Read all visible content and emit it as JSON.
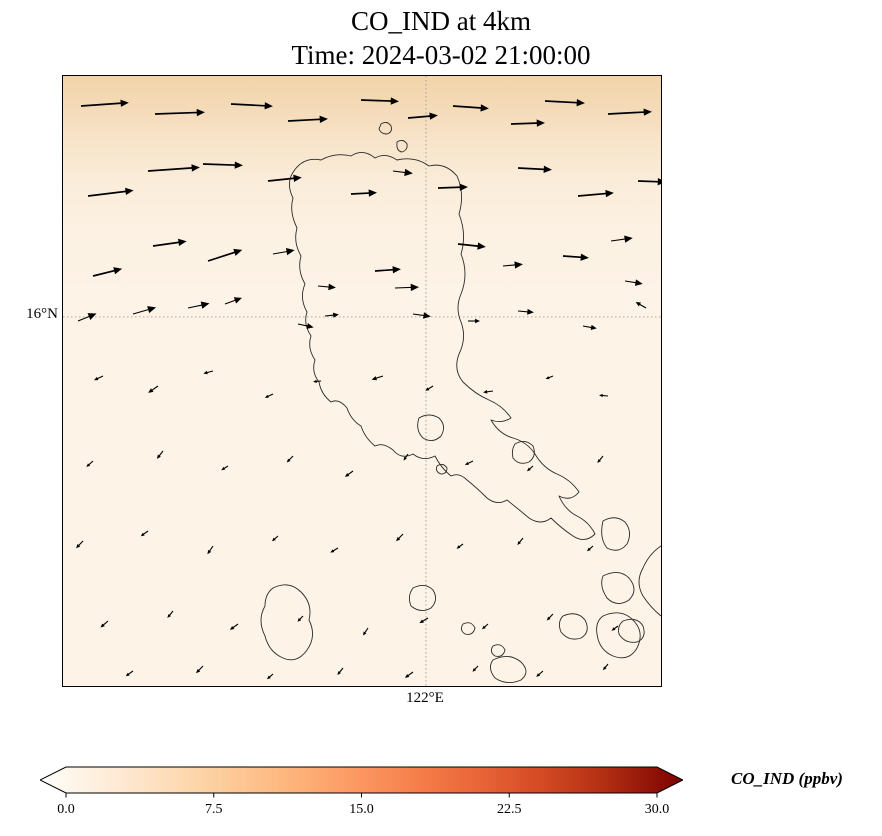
{
  "chart_data": {
    "type": "heatmap",
    "subtype": "geographic filled CO concentration field with wind quiver overlay and coastlines",
    "title": "CO_IND at 4km",
    "subtitle": "Time: 2024-03-02 21:00:00",
    "variable": "CO_IND",
    "level": "4km",
    "units": "ppbv",
    "xticks": [
      "122°E"
    ],
    "yticks": [
      "16°N"
    ],
    "gridlines": {
      "lat": {
        "label": "16°N",
        "y_frac": 0.395
      },
      "lon": {
        "label": "122°E",
        "x_frac": 0.607
      }
    },
    "value_estimate": {
      "background_ppbv": 1.5,
      "north_band_ppbv": 5
    },
    "colorbar": {
      "label": "CO_IND (ppbv)",
      "ticks": [
        "0.0",
        "7.5",
        "15.0",
        "22.5",
        "30.0"
      ],
      "tick_values": [
        0,
        7.5,
        15,
        22.5,
        30
      ],
      "min": 0,
      "max": 30,
      "under_color": "#ffffff",
      "over_color": "#7f0000",
      "stops": [
        {
          "v": 0,
          "color": "#fff7ec"
        },
        {
          "v": 3,
          "color": "#fee8d1"
        },
        {
          "v": 6,
          "color": "#fdd9b0"
        },
        {
          "v": 9,
          "color": "#fdc692"
        },
        {
          "v": 12,
          "color": "#fdb077"
        },
        {
          "v": 15,
          "color": "#fc9660"
        },
        {
          "v": 18,
          "color": "#f57d4a"
        },
        {
          "v": 21,
          "color": "#e86437"
        },
        {
          "v": 24,
          "color": "#d54b24"
        },
        {
          "v": 27,
          "color": "#b63214"
        },
        {
          "v": 30,
          "color": "#8d1006"
        }
      ]
    },
    "field_gradient": [
      {
        "offset": 0,
        "color": "#f2d4ab"
      },
      {
        "offset": 0.05,
        "color": "#f4dab7"
      },
      {
        "offset": 0.1,
        "color": "#f7e3c8"
      },
      {
        "offset": 0.17,
        "color": "#faecd9"
      },
      {
        "offset": 0.25,
        "color": "#fcf1e2"
      },
      {
        "offset": 0.36,
        "color": "#fdf3e6"
      },
      {
        "offset": 1,
        "color": "#fdf3e6"
      }
    ],
    "wind_vectors": [
      [
        18,
        30,
        48,
        4
      ],
      [
        92,
        38,
        50,
        2
      ],
      [
        168,
        28,
        42,
        -3
      ],
      [
        225,
        45,
        40,
        3
      ],
      [
        298,
        24,
        38,
        -2
      ],
      [
        345,
        42,
        30,
        5
      ],
      [
        390,
        30,
        36,
        -4
      ],
      [
        448,
        48,
        34,
        2
      ],
      [
        482,
        25,
        40,
        -3
      ],
      [
        545,
        38,
        44,
        3
      ],
      [
        25,
        120,
        46,
        7
      ],
      [
        85,
        95,
        52,
        4
      ],
      [
        140,
        88,
        40,
        -2
      ],
      [
        205,
        105,
        34,
        6
      ],
      [
        288,
        118,
        26,
        3
      ],
      [
        330,
        95,
        20,
        -7
      ],
      [
        375,
        112,
        30,
        2
      ],
      [
        455,
        92,
        34,
        -3
      ],
      [
        515,
        120,
        36,
        5
      ],
      [
        575,
        105,
        28,
        -2
      ],
      [
        30,
        200,
        30,
        14
      ],
      [
        90,
        170,
        34,
        8
      ],
      [
        145,
        185,
        36,
        18
      ],
      [
        210,
        178,
        22,
        10
      ],
      [
        255,
        210,
        18,
        -5
      ],
      [
        312,
        195,
        26,
        4
      ],
      [
        332,
        212,
        24,
        2
      ],
      [
        395,
        168,
        28,
        -6
      ],
      [
        440,
        190,
        20,
        5
      ],
      [
        500,
        180,
        26,
        -4
      ],
      [
        548,
        165,
        22,
        8
      ],
      [
        562,
        205,
        18,
        -9
      ],
      [
        15,
        245,
        20,
        22
      ],
      [
        70,
        238,
        24,
        16
      ],
      [
        125,
        232,
        22,
        12
      ],
      [
        162,
        228,
        18,
        20
      ],
      [
        235,
        248,
        16,
        -12
      ],
      [
        262,
        240,
        14,
        6
      ],
      [
        350,
        238,
        18,
        -8
      ],
      [
        405,
        245,
        12,
        0
      ],
      [
        455,
        235,
        16,
        -5
      ],
      [
        520,
        250,
        14,
        -10
      ],
      [
        583,
        232,
        12,
        150
      ],
      [
        40,
        300,
        10,
        205
      ],
      [
        95,
        310,
        12,
        215
      ],
      [
        150,
        295,
        10,
        195
      ],
      [
        210,
        318,
        9,
        205
      ],
      [
        258,
        305,
        8,
        185
      ],
      [
        320,
        300,
        12,
        198
      ],
      [
        370,
        310,
        9,
        212
      ],
      [
        430,
        315,
        10,
        188
      ],
      [
        490,
        300,
        8,
        202
      ],
      [
        545,
        320,
        9,
        175
      ],
      [
        30,
        385,
        9,
        222
      ],
      [
        100,
        375,
        10,
        232
      ],
      [
        165,
        390,
        8,
        212
      ],
      [
        230,
        380,
        9,
        226
      ],
      [
        290,
        395,
        10,
        216
      ],
      [
        345,
        378,
        8,
        236
      ],
      [
        410,
        385,
        9,
        206
      ],
      [
        470,
        390,
        8,
        221
      ],
      [
        540,
        380,
        9,
        231
      ],
      [
        20,
        465,
        10,
        226
      ],
      [
        85,
        455,
        9,
        216
      ],
      [
        150,
        470,
        10,
        236
      ],
      [
        215,
        460,
        8,
        221
      ],
      [
        275,
        472,
        9,
        211
      ],
      [
        340,
        458,
        10,
        226
      ],
      [
        400,
        468,
        8,
        216
      ],
      [
        460,
        462,
        9,
        231
      ],
      [
        530,
        470,
        8,
        221
      ],
      [
        45,
        545,
        10,
        221
      ],
      [
        110,
        535,
        9,
        231
      ],
      [
        175,
        548,
        10,
        216
      ],
      [
        240,
        540,
        8,
        226
      ],
      [
        305,
        552,
        9,
        236
      ],
      [
        365,
        542,
        10,
        211
      ],
      [
        425,
        548,
        8,
        221
      ],
      [
        490,
        538,
        9,
        226
      ],
      [
        555,
        550,
        8,
        216
      ],
      [
        70,
        595,
        9,
        216
      ],
      [
        140,
        590,
        10,
        226
      ],
      [
        210,
        598,
        8,
        221
      ],
      [
        280,
        592,
        9,
        231
      ],
      [
        350,
        596,
        10,
        216
      ],
      [
        415,
        590,
        8,
        226
      ],
      [
        480,
        595,
        9,
        221
      ],
      [
        545,
        588,
        8,
        231
      ]
    ],
    "coastline_paths": [
      "M 228,100 Q 238,80 258,84 Q 272,76 288,80 Q 300,72 312,82 Q 322,76 334,84 Q 352,80 366,90 Q 382,86 394,100 Q 402,118 396,138 Q 404,158 398,178 Q 406,198 398,218 Q 392,232 398,246 Q 404,262 396,278 Q 390,294 400,306 Q 412,318 426,324 Q 440,330 448,342 Q 438,348 428,344 Q 436,358 450,362 Q 464,366 472,378 Q 480,392 494,398 Q 508,404 516,416 Q 508,426 496,420 Q 502,434 514,440 Q 526,446 532,458 Q 522,468 510,460 Q 498,452 488,442 Q 478,450 466,442 Q 454,432 444,424 Q 434,430 424,422 Q 414,412 404,404 Q 396,396 388,400 Q 378,392 372,380 Q 360,386 350,378 Q 338,384 330,374 Q 320,366 312,370 Q 302,362 298,350 Q 288,344 284,332 Q 276,322 268,326 Q 258,318 256,306 Q 248,296 252,284 Q 244,272 248,260 Q 240,248 244,236 Q 236,222 242,208 Q 234,194 238,180 Q 230,166 234,152 Q 226,136 230,122 Q 224,110 228,100 Z",
      "M 318,48 Q 324,44 328,50 Q 330,56 324,58 Q 318,58 316,53 Z",
      "M 334,66 Q 340,62 344,68 Q 345,74 339,76 Q 333,75 334,66 Z",
      "M 356,342 Q 366,336 376,342 Q 384,350 378,360 Q 370,368 360,362 Q 352,354 356,342 Z",
      "M 374,390 Q 380,386 384,392 Q 384,398 378,398 Q 372,396 374,390 Z",
      "M 452,368 Q 462,362 470,370 Q 474,380 466,386 Q 456,390 450,382 Q 448,374 452,368 Z",
      "M 540,445 Q 552,438 562,446 Q 570,456 564,468 Q 556,478 544,472 Q 536,462 540,445 Z",
      "M 210,512 Q 226,504 238,516 Q 250,528 246,544 Q 254,560 244,574 Q 234,588 220,582 Q 206,576 202,560 Q 194,544 202,530 Q 202,518 210,512 Z",
      "M 350,512 Q 362,506 370,514 Q 376,524 368,532 Q 358,538 348,530 Q 344,520 350,512 Z",
      "M 400,548 Q 408,544 412,552 Q 410,560 402,558 Q 396,554 400,548 Z",
      "M 430,570 Q 438,566 442,574 Q 440,582 432,580 Q 426,576 430,570 Z",
      "M 540,500 Q 556,492 566,502 Q 576,514 566,524 Q 554,532 544,522 Q 536,510 540,500 Z",
      "M 500,540 Q 514,534 522,544 Q 528,556 518,562 Q 506,566 498,556 Q 494,546 500,540 Z",
      "M 560,545 Q 574,540 580,550 Q 584,562 574,566 Q 562,568 556,558 Q 554,550 560,545 Z",
      "M 540,540 Q 558,532 570,544 Q 582,556 574,572 Q 566,586 550,580 Q 536,574 534,558 Q 532,546 540,540 Z",
      "M 430,584 Q 446,576 458,586 Q 468,596 458,604 Q 444,610 432,602 Q 424,592 430,584 Z",
      "M 598,470 Q 586,478 580,492 Q 572,506 580,520 Q 588,532 598,540"
    ]
  }
}
